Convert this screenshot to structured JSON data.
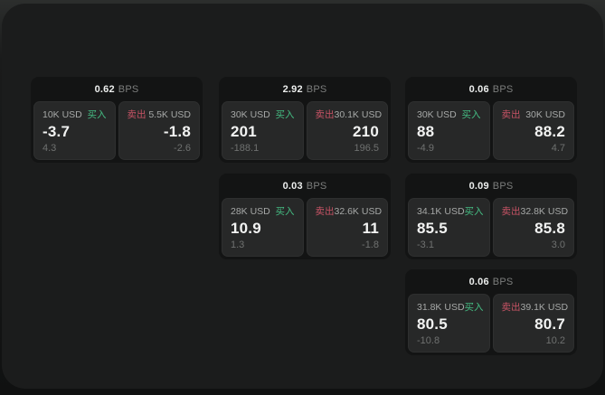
{
  "labels": {
    "bps_unit": "BPS",
    "buy": "买入",
    "sell": "卖出"
  },
  "colors": {
    "buy_green": "#45bd83",
    "sell_red": "#c75365",
    "window_bg": "#1b1c1c",
    "card_bg": "#131414",
    "panel_bg": "#272828"
  },
  "cards": [
    {
      "row": 1,
      "col": 1,
      "bps": "0.62",
      "buy": {
        "amount": "10K USD",
        "price": "-3.7",
        "delta": "4.3"
      },
      "sell": {
        "amount": "5.5K USD",
        "price": "-1.8",
        "delta": "-2.6"
      }
    },
    {
      "row": 1,
      "col": 2,
      "bps": "2.92",
      "buy": {
        "amount": "30K USD",
        "price": "201",
        "delta": "-188.1"
      },
      "sell": {
        "amount": "30.1K USD",
        "price": "210",
        "delta": "196.5"
      }
    },
    {
      "row": 1,
      "col": 3,
      "bps": "0.06",
      "buy": {
        "amount": "30K USD",
        "price": "88",
        "delta": "-4.9"
      },
      "sell": {
        "amount": "30K USD",
        "price": "88.2",
        "delta": "4.7"
      }
    },
    {
      "row": 2,
      "col": 2,
      "bps": "0.03",
      "buy": {
        "amount": "28K USD",
        "price": "10.9",
        "delta": "1.3"
      },
      "sell": {
        "amount": "32.6K USD",
        "price": "11",
        "delta": "-1.8"
      }
    },
    {
      "row": 2,
      "col": 3,
      "bps": "0.09",
      "buy": {
        "amount": "34.1K USD",
        "price": "85.5",
        "delta": "-3.1"
      },
      "sell": {
        "amount": "32.8K USD",
        "price": "85.8",
        "delta": "3.0"
      }
    },
    {
      "row": 3,
      "col": 3,
      "bps": "0.06",
      "buy": {
        "amount": "31.8K USD",
        "price": "80.5",
        "delta": "-10.8"
      },
      "sell": {
        "amount": "39.1K USD",
        "price": "80.7",
        "delta": "10.2"
      }
    }
  ]
}
